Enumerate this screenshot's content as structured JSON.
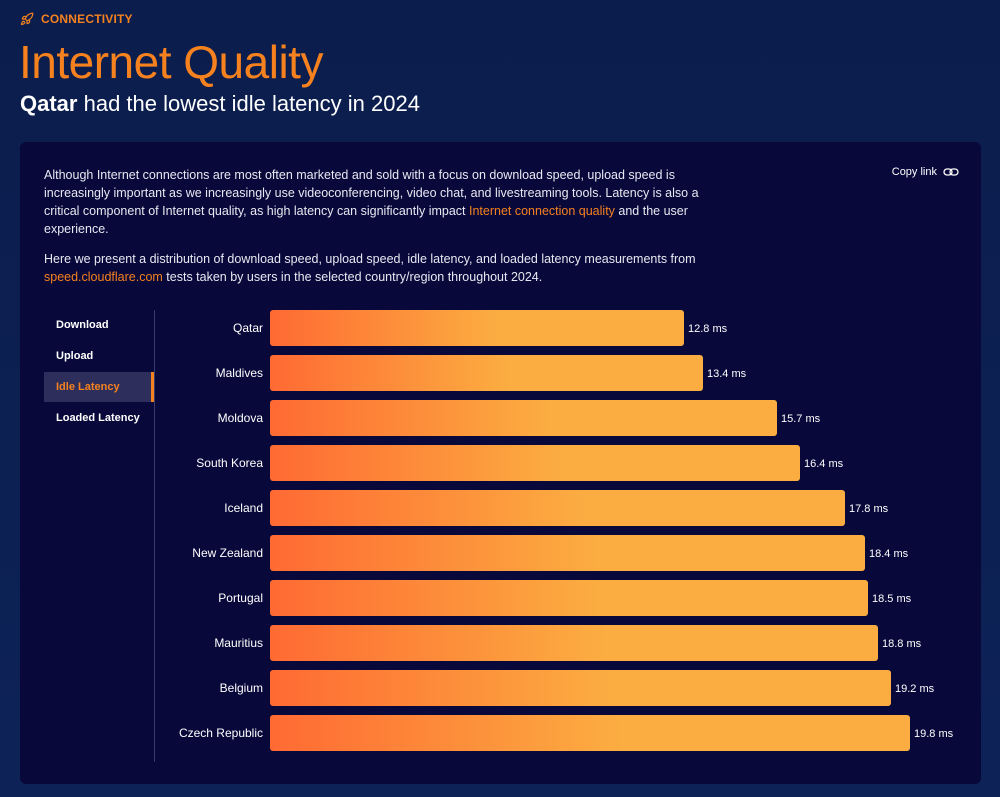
{
  "header": {
    "eyebrow": "CONNECTIVITY",
    "title": "Internet Quality",
    "subtitle_bold": "Qatar",
    "subtitle_rest": " had the lowest idle latency in 2024"
  },
  "description": {
    "p1_a": "Although Internet connections are most often marketed and sold with a focus on download speed, upload speed is increasingly important as we increasingly use videoconferencing, video chat, and livestreaming tools. Latency is also a critical component of Internet quality, as high latency can significantly impact ",
    "p1_link": "Internet connection quality",
    "p1_b": " and the user experience.",
    "p2_a": "Here we present a distribution of download speed, upload speed, idle latency, and loaded latency measurements from ",
    "p2_link": "speed.cloudflare.com",
    "p2_b": " tests taken by users in the selected country/region throughout 2024."
  },
  "copy_link": "Copy link",
  "tabs": [
    {
      "label": "Download"
    },
    {
      "label": "Upload"
    },
    {
      "label": "Idle Latency"
    },
    {
      "label": "Loaded Latency"
    }
  ],
  "colors": {
    "accent": "#f6821f",
    "bar_start": "#ff6a33",
    "bar_end": "#fbad41"
  },
  "chart_data": {
    "type": "bar",
    "orientation": "horizontal",
    "categories": [
      "Qatar",
      "Maldives",
      "Moldova",
      "South Korea",
      "Iceland",
      "New Zealand",
      "Portugal",
      "Mauritius",
      "Belgium",
      "Czech Republic"
    ],
    "values": [
      12.8,
      13.4,
      15.7,
      16.4,
      17.8,
      18.4,
      18.5,
      18.8,
      19.2,
      19.8
    ],
    "labels": [
      "12.8 ms",
      "13.4 ms",
      "15.7 ms",
      "16.4 ms",
      "17.8 ms",
      "18.4 ms",
      "18.5 ms",
      "18.8 ms",
      "19.2 ms",
      "19.8 ms"
    ],
    "unit": "ms",
    "title": "Idle Latency",
    "xlim": [
      0,
      19.8
    ]
  }
}
